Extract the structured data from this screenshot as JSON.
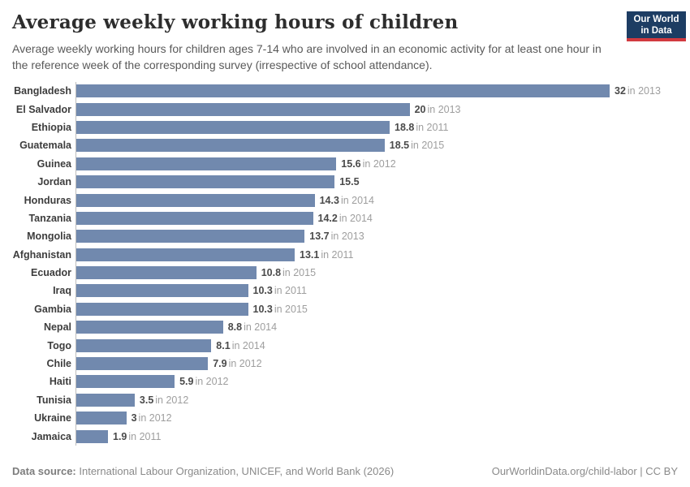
{
  "header": {
    "title": "Average weekly working hours of children",
    "subtitle": "Average weekly working hours for children ages 7-14 who are involved in an economic activity for at least one hour in the reference week of the corresponding survey (irrespective of school attendance).",
    "logo": {
      "line1": "Our World",
      "line2": "in Data"
    }
  },
  "chart_data": {
    "type": "bar",
    "orientation": "horizontal",
    "title": "Average weekly working hours of children",
    "xlabel": "",
    "ylabel": "",
    "xlim": [
      0,
      32
    ],
    "grid": false,
    "legend": false,
    "bar_color": "#7189ae",
    "categories": [
      "Bangladesh",
      "El Salvador",
      "Ethiopia",
      "Guatemala",
      "Guinea",
      "Jordan",
      "Honduras",
      "Tanzania",
      "Mongolia",
      "Afghanistan",
      "Ecuador",
      "Iraq",
      "Gambia",
      "Nepal",
      "Togo",
      "Chile",
      "Haiti",
      "Tunisia",
      "Ukraine",
      "Jamaica"
    ],
    "values": [
      32,
      20,
      18.8,
      18.5,
      15.6,
      15.5,
      14.3,
      14.2,
      13.7,
      13.1,
      10.8,
      10.3,
      10.3,
      8.8,
      8.1,
      7.9,
      5.9,
      3.5,
      3,
      1.9
    ],
    "year_labels": [
      "in 2013",
      "in 2013",
      "in 2011",
      "in 2015",
      "in 2012",
      "",
      "in 2014",
      "in 2014",
      "in 2013",
      "in 2011",
      "in 2015",
      "in 2011",
      "in 2015",
      "in 2014",
      "in 2014",
      "in 2012",
      "in 2012",
      "in 2012",
      "in 2012",
      "in 2011"
    ]
  },
  "footer": {
    "source_label": "Data source:",
    "source_text": "International Labour Organization, UNICEF, and World Bank (2026)",
    "attribution": "OurWorldinData.org/child-labor | CC BY"
  },
  "colors": {
    "bar": "#7189ae",
    "logo_navy": "#1d3d63",
    "logo_red": "#d23a3f",
    "axis_line": "#bdbdbd"
  }
}
